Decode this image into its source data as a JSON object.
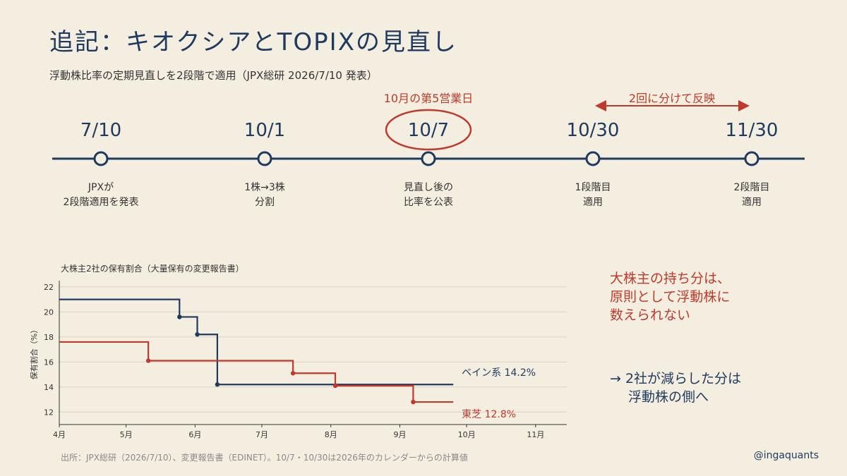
{
  "header": {
    "title": "追記：キオクシアとTOPIXの見直し",
    "subtitle": "浮動株比率の定期見直しを2段階で適用（JPX総研 2026/7/10 発表）"
  },
  "timeline": {
    "events": [
      {
        "date": "7/10",
        "desc1": "JPXが",
        "desc2": "2段階適用を発表"
      },
      {
        "date": "10/1",
        "desc1": "1株→3株",
        "desc2": "分割"
      },
      {
        "date": "10/7",
        "desc1": "見直し後の",
        "desc2": "比率を公表"
      },
      {
        "date": "10/30",
        "desc1": "1段階目",
        "desc2": "適用"
      },
      {
        "date": "11/30",
        "desc1": "2段階目",
        "desc2": "適用"
      }
    ],
    "highlight_label": "10月の第5営業日",
    "range_label": "2回に分けて反映"
  },
  "notes": {
    "note1_line1": "大株主の持ち分は、",
    "note1_line2": "原則として浮動株に",
    "note1_line3": "数えられない",
    "note2_line1": "→ 2社が減らした分は",
    "note2_line2": "浮動株の側へ"
  },
  "footer": {
    "source": "出所：JPX総研（2026/7/10）、変更報告書（EDINET）。10/7・10/30は2026年のカレンダーからの計算値",
    "handle": "@ingaquants"
  },
  "colors": {
    "navy": "#1f3a5f",
    "red": "#c0392b",
    "background": "#f4eee0"
  },
  "chart_data": {
    "type": "line",
    "title": "大株主2社の保有割合（大量保有の変更報告書）",
    "ylabel": "保有割合（%）",
    "xlabel": "",
    "x_ticks": [
      "4月",
      "5月",
      "6月",
      "7月",
      "8月",
      "9月",
      "10月",
      "11月"
    ],
    "ylim": [
      11,
      22.5
    ],
    "y_ticks": [
      12,
      14,
      16,
      18,
      20,
      22
    ],
    "grid": "horizontal",
    "step": true,
    "series": [
      {
        "name": "ベイン系",
        "end_label": "ベイン系 14.2%",
        "color": "#1f3a5f",
        "start": {
          "x": "2026-04-01",
          "y": 21.0
        },
        "points": [
          {
            "x": "2026-05-25",
            "y": 19.6
          },
          {
            "x": "2026-06-02",
            "y": 18.2
          },
          {
            "x": "2026-06-11",
            "y": 14.2
          }
        ],
        "end": {
          "x": "2026-09-25",
          "y": 14.2
        }
      },
      {
        "name": "東芝",
        "end_label": "東芝 12.8%",
        "color": "#c0392b",
        "start": {
          "x": "2026-04-01",
          "y": 17.6
        },
        "points": [
          {
            "x": "2026-05-11",
            "y": 16.1
          },
          {
            "x": "2026-07-15",
            "y": 15.1
          },
          {
            "x": "2026-08-03",
            "y": 14.1
          },
          {
            "x": "2026-09-07",
            "y": 12.8
          }
        ],
        "end": {
          "x": "2026-09-25",
          "y": 12.8
        }
      }
    ]
  }
}
